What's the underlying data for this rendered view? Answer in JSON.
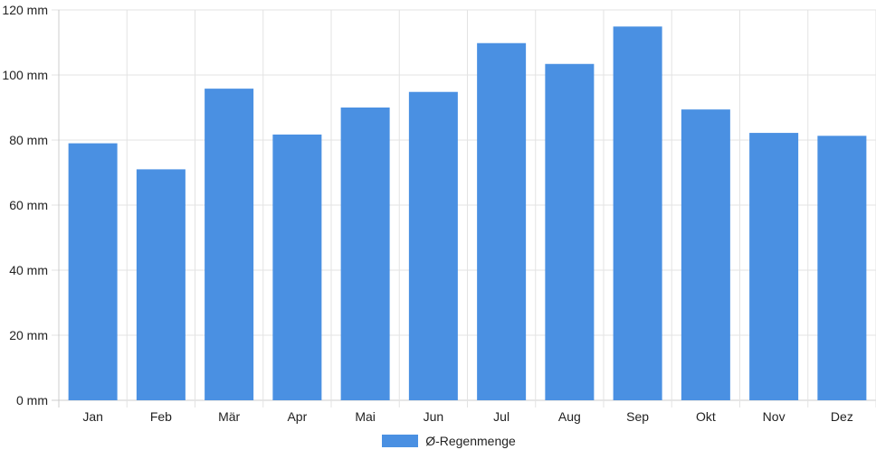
{
  "chart_data": {
    "type": "bar",
    "categories": [
      "Jan",
      "Feb",
      "Mär",
      "Apr",
      "Mai",
      "Jun",
      "Jul",
      "Aug",
      "Sep",
      "Okt",
      "Nov",
      "Dez"
    ],
    "series": [
      {
        "name": "Ø-Regenmenge",
        "values": [
          79,
          71,
          95.8,
          81.7,
          90,
          94.8,
          109.8,
          103.4,
          114.9,
          89.4,
          82.2,
          81.3
        ],
        "color": "#4a90e2"
      }
    ],
    "y_tick_labels": [
      "0 mm",
      "20 mm",
      "40 mm",
      "60 mm",
      "80 mm",
      "100 mm",
      "120 mm"
    ],
    "y_ticks": [
      0,
      20,
      40,
      60,
      80,
      100,
      120
    ],
    "ylim": [
      0,
      120
    ],
    "grid": true,
    "legend_position": "bottom-center"
  }
}
